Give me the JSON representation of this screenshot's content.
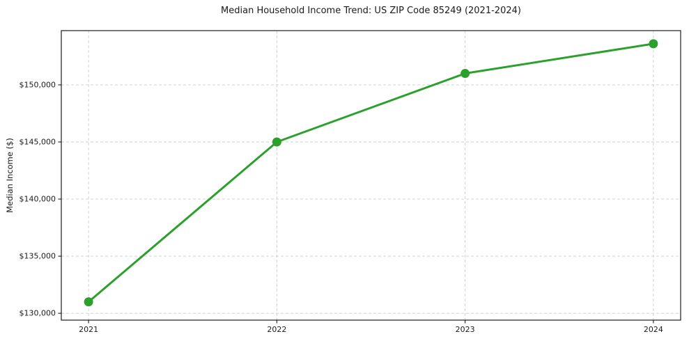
{
  "chart_data": {
    "type": "line",
    "title": "Median Household Income Trend: US ZIP Code 85249 (2021-2024)",
    "xlabel": "",
    "ylabel": "Median Income ($)",
    "x": [
      2021,
      2022,
      2023,
      2024
    ],
    "x_tick_labels": [
      "2021",
      "2022",
      "2023",
      "2024"
    ],
    "series": [
      {
        "name": "Median Household Income",
        "values": [
          131000,
          145000,
          151000,
          153600
        ],
        "color": "#2ca02c",
        "marker": "circle",
        "line_width": 3
      }
    ],
    "y_ticks": [
      130000,
      135000,
      140000,
      145000,
      150000
    ],
    "y_tick_labels": [
      "$130,000",
      "$135,000",
      "$140,000",
      "$145,000",
      "$150,000"
    ],
    "ylim": [
      129400,
      154750
    ],
    "grid": true,
    "grid_style": "dashed",
    "grid_color": "#cccccc",
    "axis_color": "#1a1a1a",
    "background": "#ffffff",
    "legend_position": "none"
  }
}
